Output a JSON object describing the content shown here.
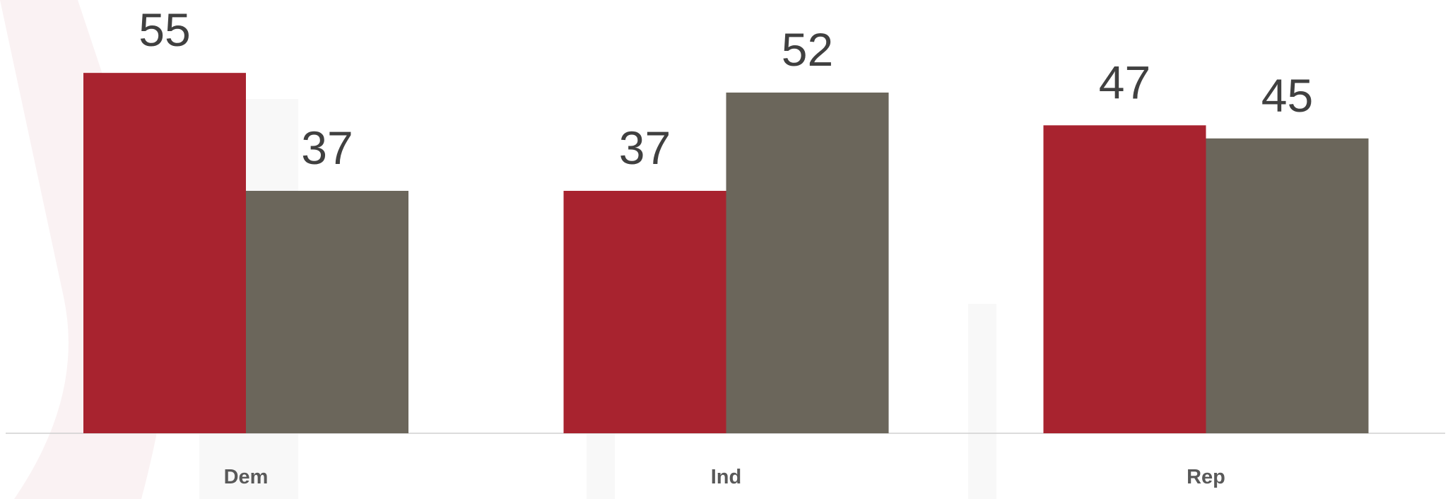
{
  "chart_data": {
    "type": "bar",
    "categories": [
      "Dem",
      "Ind",
      "Rep"
    ],
    "series": [
      {
        "color": "#a8232f",
        "values": [
          55,
          37,
          47
        ]
      },
      {
        "color": "#6b665b",
        "values": [
          37,
          52,
          45
        ]
      }
    ]
  }
}
